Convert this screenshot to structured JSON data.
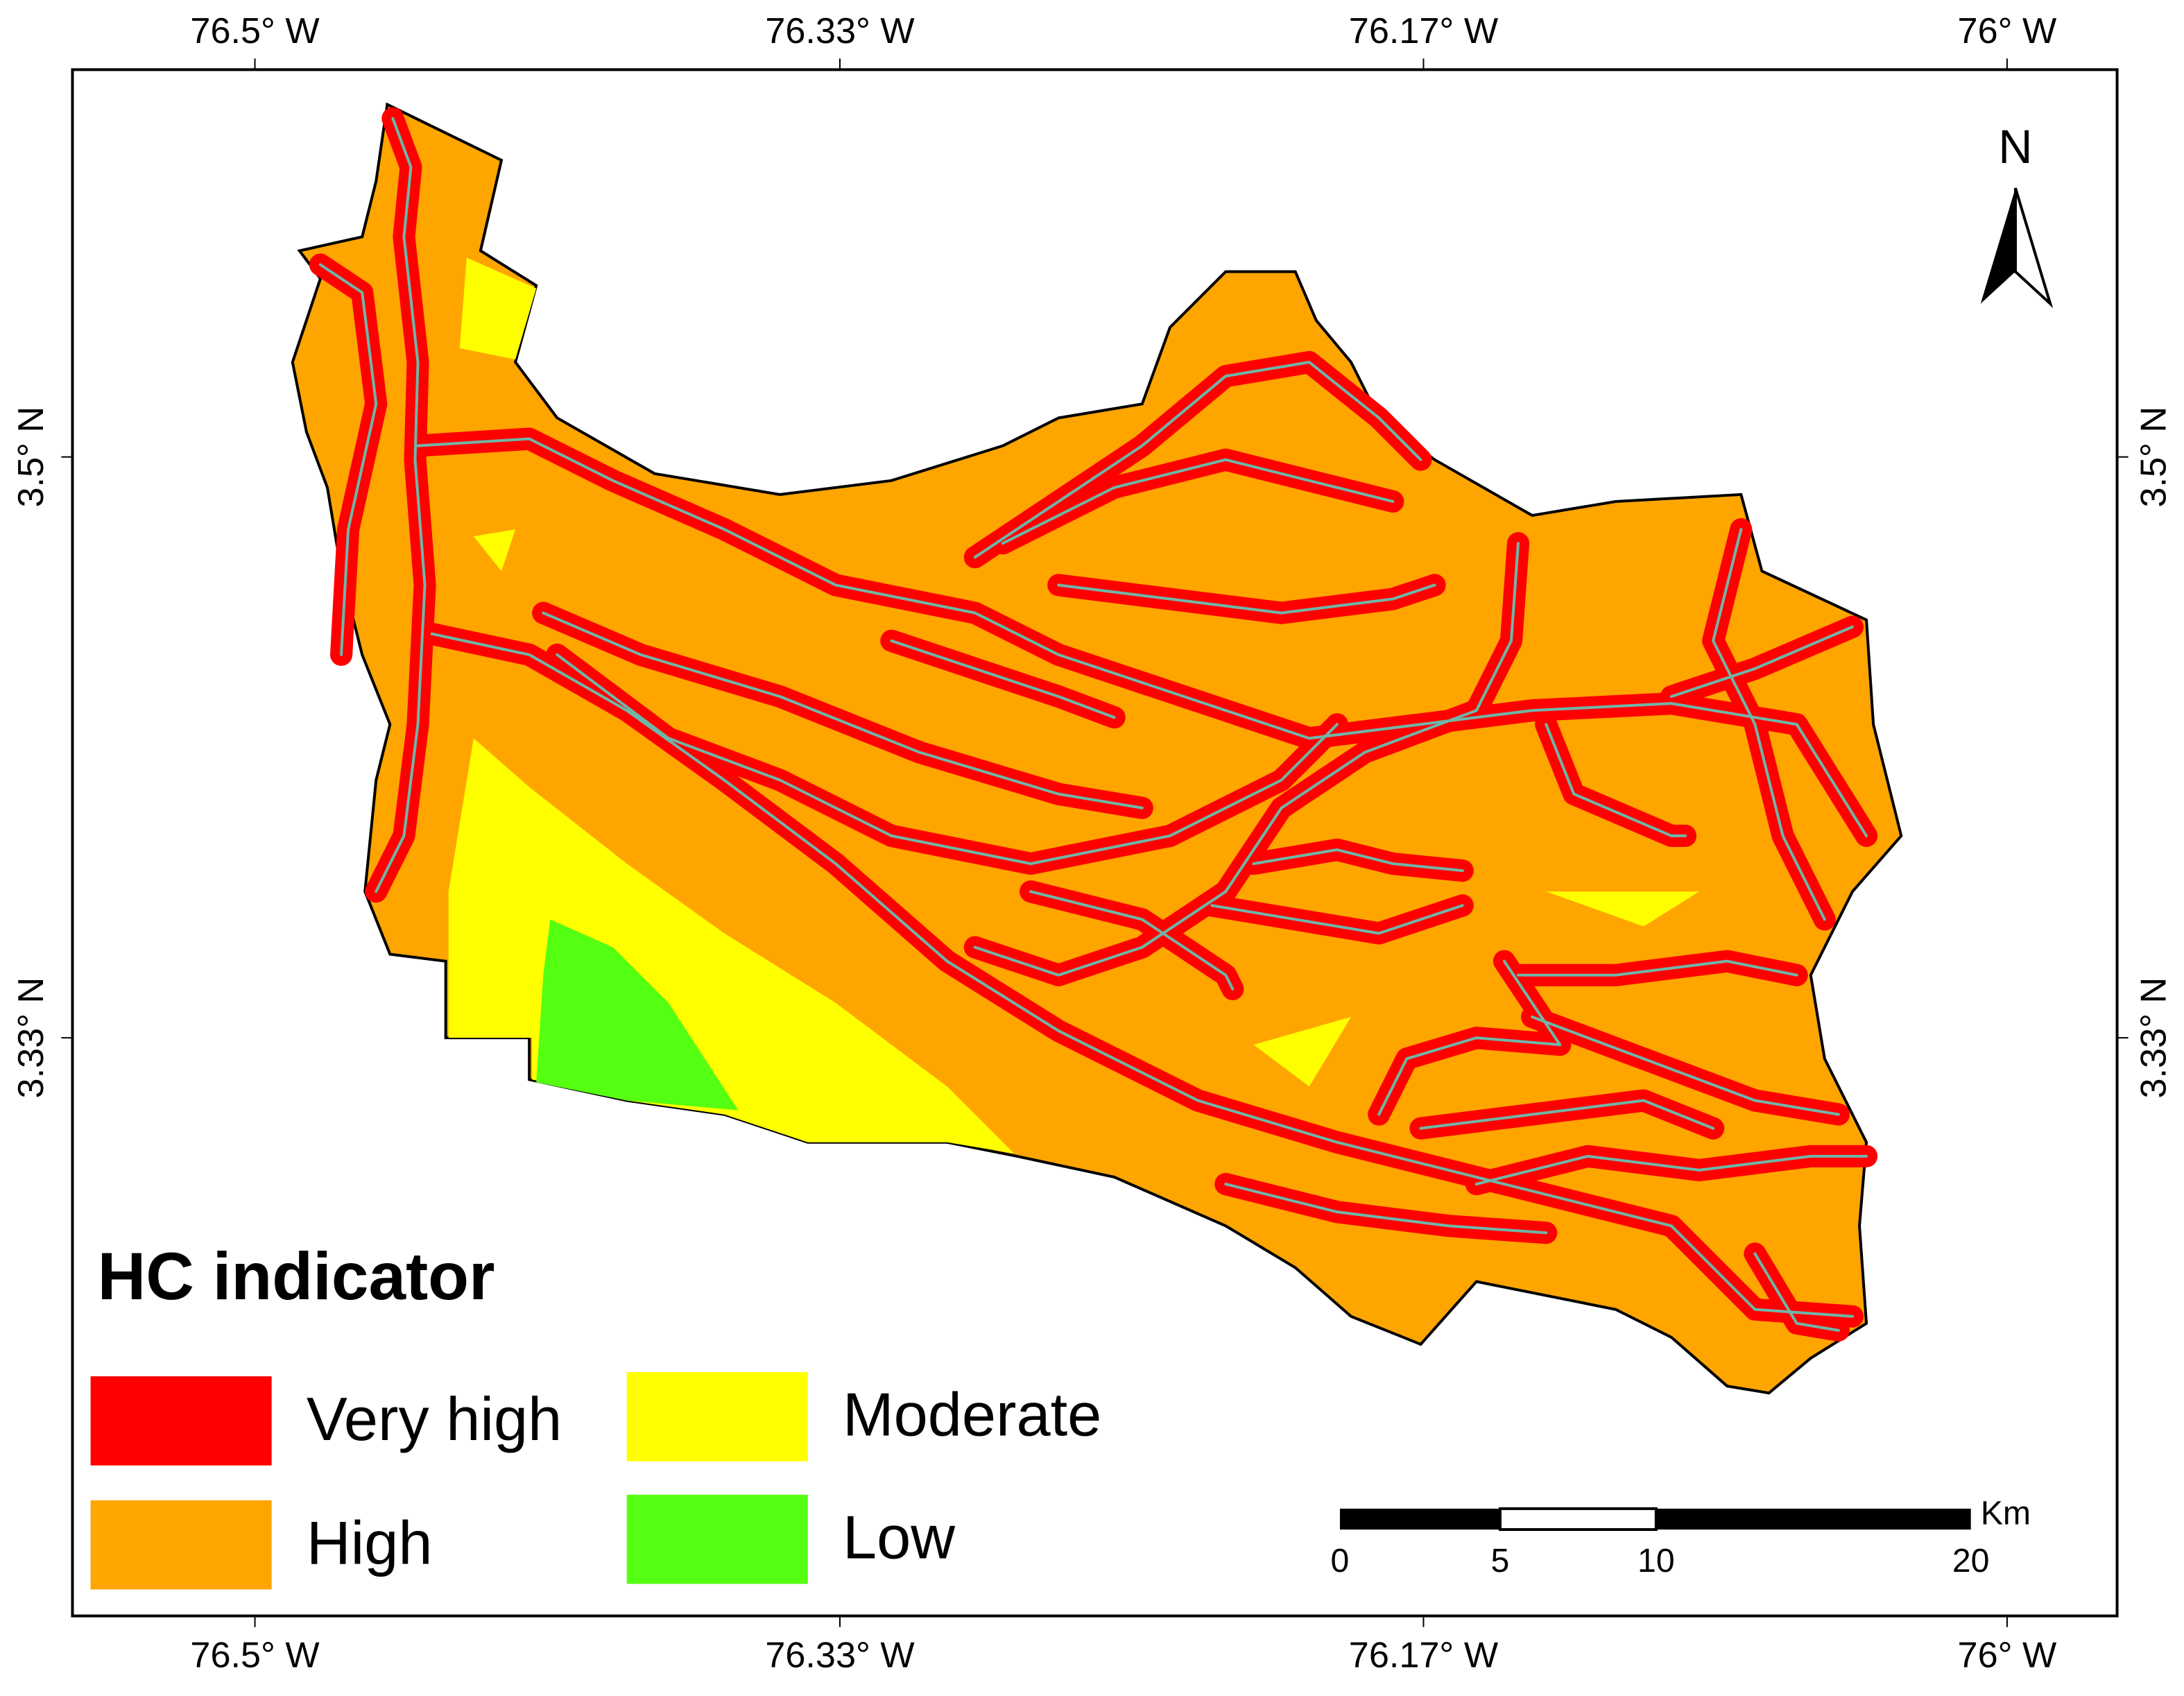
{
  "map": {
    "top_labels": [
      "76.5° W",
      "76.33° W",
      "76.17° W",
      "76° W"
    ],
    "bottom_labels": [
      "76.5° W",
      "76.33° W",
      "76.17° W",
      "76° W"
    ],
    "left_labels": [
      "3.5° N",
      "3.33° N"
    ],
    "right_labels": [
      "3.5° N",
      "3.33° N"
    ],
    "north": "N",
    "legend": {
      "title": "HC indicator",
      "items": [
        {
          "label": "Very high",
          "color": "#ff0000"
        },
        {
          "label": "High",
          "color": "#ffa500"
        },
        {
          "label": "Moderate",
          "color": "#ffff00"
        },
        {
          "label": "Low",
          "color": "#55ff11"
        }
      ]
    },
    "scale_bar": {
      "unit": "Km",
      "labels": [
        "0",
        "5",
        "10",
        "20"
      ]
    }
  }
}
